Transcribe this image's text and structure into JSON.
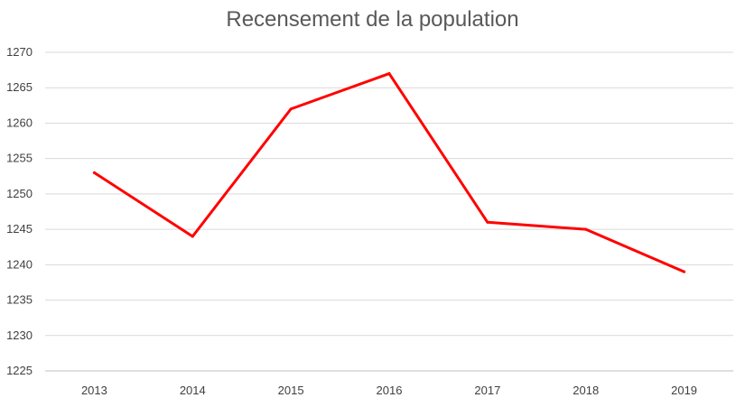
{
  "chart_data": {
    "type": "line",
    "title": "Recensement de la population",
    "xlabel": "",
    "ylabel": "",
    "categories": [
      "2013",
      "2014",
      "2015",
      "2016",
      "2017",
      "2018",
      "2019"
    ],
    "series": [
      {
        "values": [
          1253,
          1244,
          1262,
          1267,
          1246,
          1245,
          1239
        ],
        "color": "#ff0000"
      }
    ],
    "ylim": [
      1225,
      1270
    ],
    "yticks": [
      1225,
      1230,
      1235,
      1240,
      1245,
      1250,
      1255,
      1260,
      1265,
      1270
    ],
    "grid": true,
    "legend": "none"
  },
  "colors": {
    "line": "#ff0000",
    "grid": "#d9d9d9",
    "axis": "#bfbfbf",
    "text": "#404040",
    "title": "#595959"
  }
}
